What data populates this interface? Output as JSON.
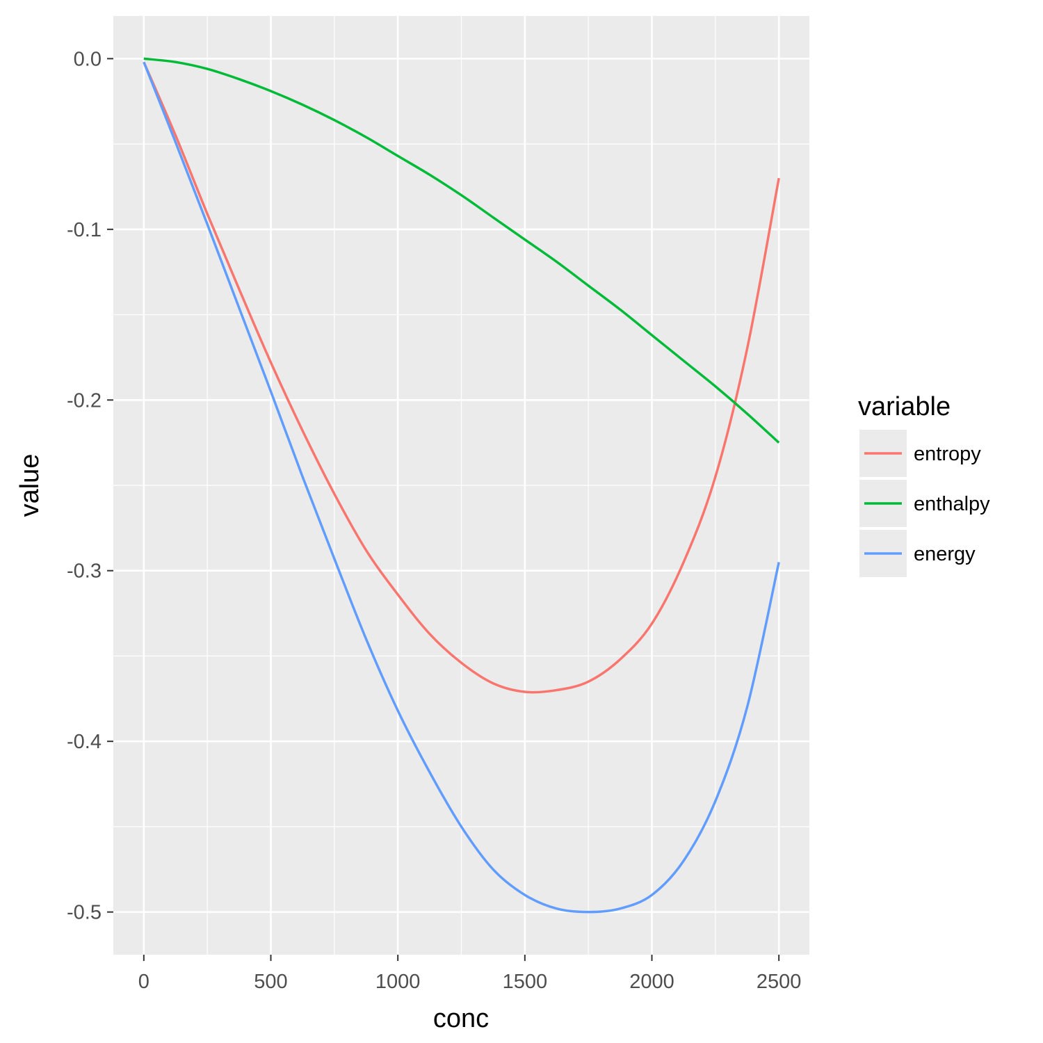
{
  "chart_data": {
    "type": "line",
    "xlabel": "conc",
    "ylabel": "value",
    "xlim": [
      -120,
      2620
    ],
    "ylim": [
      -0.525,
      0.025
    ],
    "x_ticks": [
      0,
      500,
      1000,
      1500,
      2000,
      2500
    ],
    "x_tick_labels": [
      "0",
      "500",
      "1000",
      "1500",
      "2000",
      "2500"
    ],
    "y_ticks": [
      0.0,
      -0.1,
      -0.2,
      -0.3,
      -0.4,
      -0.5
    ],
    "y_tick_labels": [
      "0.0",
      "-0.1",
      "-0.2",
      "-0.3",
      "-0.4",
      "-0.5"
    ],
    "grid": true,
    "legend": {
      "title": "variable",
      "position": "right",
      "entries": [
        "entropy",
        "enthalpy",
        "energy"
      ]
    },
    "x": [
      0,
      125,
      250,
      375,
      500,
      625,
      750,
      875,
      1000,
      1125,
      1250,
      1375,
      1500,
      1625,
      1750,
      1875,
      2000,
      2125,
      2250,
      2375,
      2500
    ],
    "series": [
      {
        "name": "entropy",
        "color": "#F8766D",
        "values": [
          -0.002,
          -0.045,
          -0.091,
          -0.135,
          -0.178,
          -0.218,
          -0.255,
          -0.288,
          -0.314,
          -0.337,
          -0.354,
          -0.366,
          -0.371,
          -0.37,
          -0.365,
          -0.352,
          -0.331,
          -0.295,
          -0.245,
          -0.17,
          -0.07
        ]
      },
      {
        "name": "enthalpy",
        "color": "#00BA38",
        "values": [
          0.0,
          -0.002,
          -0.006,
          -0.012,
          -0.019,
          -0.027,
          -0.036,
          -0.046,
          -0.057,
          -0.068,
          -0.08,
          -0.093,
          -0.106,
          -0.119,
          -0.133,
          -0.147,
          -0.162,
          -0.177,
          -0.192,
          -0.208,
          -0.225
        ]
      },
      {
        "name": "energy",
        "color": "#619CFF",
        "values": [
          -0.002,
          -0.049,
          -0.097,
          -0.146,
          -0.195,
          -0.245,
          -0.293,
          -0.34,
          -0.382,
          -0.418,
          -0.45,
          -0.475,
          -0.49,
          -0.498,
          -0.5,
          -0.498,
          -0.49,
          -0.47,
          -0.435,
          -0.38,
          -0.295
        ]
      }
    ]
  }
}
